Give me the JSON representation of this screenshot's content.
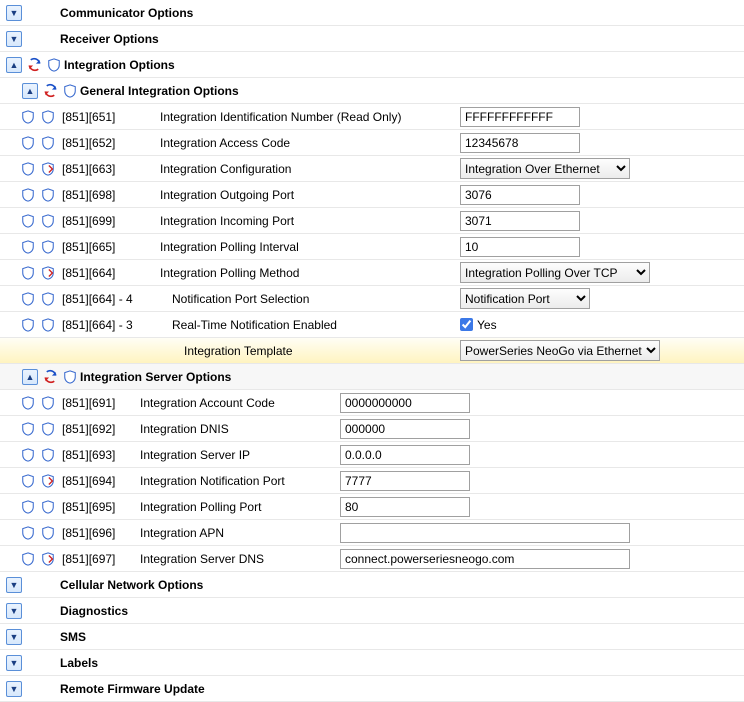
{
  "sections": {
    "communicator": "Communicator Options",
    "receiver": "Receiver Options",
    "integration": "Integration Options",
    "general_integration": "General Integration Options",
    "server": "Integration Server Options",
    "cellular": "Cellular Network Options",
    "diagnostics": "Diagnostics",
    "sms": "SMS",
    "labels": "Labels",
    "firmware": "Remote Firmware Update"
  },
  "gi": {
    "r1": {
      "code": "[851][651]",
      "label": "Integration Identification Number (Read Only)",
      "value": "FFFFFFFFFFFF"
    },
    "r2": {
      "code": "[851][652]",
      "label": "Integration Access Code",
      "value": "12345678"
    },
    "r3": {
      "code": "[851][663]",
      "label": "Integration Configuration",
      "value": "Integration Over Ethernet"
    },
    "r4": {
      "code": "[851][698]",
      "label": "Integration Outgoing Port",
      "value": "3076"
    },
    "r5": {
      "code": "[851][699]",
      "label": "Integration Incoming Port",
      "value": "3071"
    },
    "r6": {
      "code": "[851][665]",
      "label": "Integration Polling Interval",
      "value": "10"
    },
    "r7": {
      "code": "[851][664]",
      "label": "Integration Polling Method",
      "value": "Integration Polling Over TCP"
    },
    "r8": {
      "code": "[851][664] - 4",
      "label": "Notification Port Selection",
      "value": "Notification Port"
    },
    "r9": {
      "code": "[851][664] - 3",
      "label": "Real-Time Notification Enabled",
      "value": "Yes"
    },
    "template": {
      "label": "Integration Template",
      "value": "PowerSeries NeoGo via Ethernet"
    }
  },
  "sv": {
    "r1": {
      "code": "[851][691]",
      "label": "Integration Account Code",
      "value": "0000000000"
    },
    "r2": {
      "code": "[851][692]",
      "label": "Integration DNIS",
      "value": "000000"
    },
    "r3": {
      "code": "[851][693]",
      "label": "Integration Server IP",
      "value": "0.0.0.0"
    },
    "r4": {
      "code": "[851][694]",
      "label": "Integration Notification Port",
      "value": "7777"
    },
    "r5": {
      "code": "[851][695]",
      "label": "Integration Polling Port",
      "value": "80"
    },
    "r6": {
      "code": "[851][696]",
      "label": "Integration APN",
      "value": ""
    },
    "r7": {
      "code": "[851][697]",
      "label": "Integration Server DNS",
      "value": "connect.powerseriesneogo.com"
    }
  }
}
